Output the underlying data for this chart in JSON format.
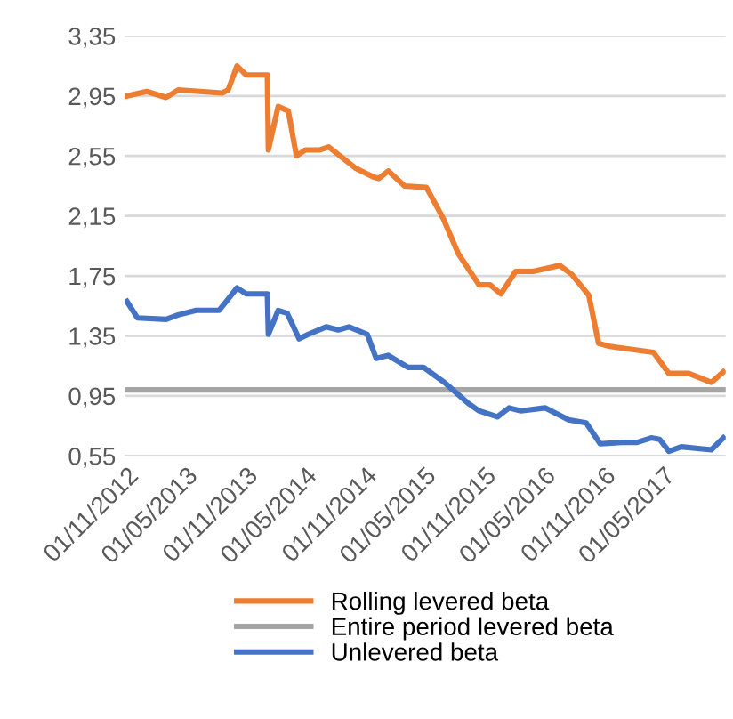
{
  "chart_data": {
    "type": "line",
    "series": [
      {
        "name": "Rolling levered beta",
        "color": "#ed7d31",
        "x": [
          "2012-11-01",
          "2013-01-01",
          "2013-03-01",
          "2013-04-07",
          "2013-08-20",
          "2013-09-07",
          "2013-10-04",
          "2013-11-01",
          "2014-01-05",
          "2014-01-08",
          "2014-02-07",
          "2014-03-10",
          "2014-04-04",
          "2014-05-01",
          "2014-06-15",
          "2014-07-12",
          "2014-10-01",
          "2014-11-25",
          "2014-12-12",
          "2015-01-10",
          "2015-03-01",
          "2015-05-07",
          "2015-06-28",
          "2015-08-12",
          "2015-10-15",
          "2015-11-18",
          "2015-12-21",
          "2016-02-04",
          "2016-03-28",
          "2016-06-18",
          "2016-07-25",
          "2016-09-15",
          "2016-10-15",
          "2016-11-18",
          "2017-04-01",
          "2017-05-18",
          "2017-07-18",
          "2017-09-25",
          "2017-11-01"
        ],
        "values": [
          2.95,
          2.98,
          2.94,
          2.99,
          2.97,
          2.99,
          3.15,
          3.09,
          3.09,
          2.59,
          2.88,
          2.85,
          2.55,
          2.59,
          2.59,
          2.61,
          2.47,
          2.41,
          2.4,
          2.45,
          2.35,
          2.34,
          2.13,
          1.9,
          1.69,
          1.69,
          1.63,
          1.78,
          1.78,
          1.82,
          1.76,
          1.62,
          1.3,
          1.28,
          1.24,
          1.1,
          1.1,
          1.04,
          1.11
        ]
      },
      {
        "name": "Entire period levered beta",
        "color": "#a5a5a5",
        "x": [
          "2012-11-01",
          "2017-11-01"
        ],
        "values": [
          0.99,
          0.99
        ]
      },
      {
        "name": "Unlevered beta",
        "color": "#4472c4",
        "x": [
          "2012-11-01",
          "2012-12-03",
          "2013-03-01",
          "2013-04-07",
          "2013-06-01",
          "2013-08-10",
          "2013-10-04",
          "2013-11-01",
          "2014-01-05",
          "2014-01-08",
          "2014-02-07",
          "2014-03-07",
          "2014-04-12",
          "2014-05-10",
          "2014-07-04",
          "2014-08-10",
          "2014-09-12",
          "2014-11-07",
          "2014-12-04",
          "2015-01-10",
          "2015-03-12",
          "2015-04-28",
          "2015-07-01",
          "2015-09-12",
          "2015-10-15",
          "2015-12-10",
          "2016-01-15",
          "2016-02-20",
          "2016-05-04",
          "2016-07-15",
          "2016-09-07",
          "2016-10-20",
          "2016-12-25",
          "2017-02-10",
          "2017-03-25",
          "2017-04-20",
          "2017-05-18",
          "2017-06-25",
          "2017-09-25",
          "2017-11-01"
        ],
        "values": [
          1.58,
          1.47,
          1.46,
          1.49,
          1.52,
          1.52,
          1.67,
          1.63,
          1.63,
          1.36,
          1.52,
          1.5,
          1.33,
          1.36,
          1.41,
          1.39,
          1.41,
          1.36,
          1.2,
          1.22,
          1.14,
          1.14,
          1.04,
          0.9,
          0.85,
          0.81,
          0.87,
          0.85,
          0.87,
          0.79,
          0.77,
          0.63,
          0.64,
          0.64,
          0.67,
          0.66,
          0.58,
          0.61,
          0.59,
          0.67
        ]
      }
    ],
    "xlim": [
      "2012-10-25",
      "2017-11-08"
    ],
    "xticks": [
      {
        "value": "2012-11-01",
        "label": "01/11/2012"
      },
      {
        "value": "2013-05-01",
        "label": "01/05/2013"
      },
      {
        "value": "2013-11-01",
        "label": "01/11/2013"
      },
      {
        "value": "2014-05-01",
        "label": "01/05/2014"
      },
      {
        "value": "2014-11-01",
        "label": "01/11/2014"
      },
      {
        "value": "2015-05-01",
        "label": "01/05/2015"
      },
      {
        "value": "2015-11-01",
        "label": "01/11/2015"
      },
      {
        "value": "2016-05-01",
        "label": "01/05/2016"
      },
      {
        "value": "2016-11-01",
        "label": "01/11/2016"
      },
      {
        "value": "2017-05-01",
        "label": "01/05/2017"
      }
    ],
    "ylim": [
      0.55,
      3.35
    ],
    "yticks": [
      {
        "value": 0.55,
        "label": "0,55"
      },
      {
        "value": 0.95,
        "label": "0,95"
      },
      {
        "value": 1.35,
        "label": "1,35"
      },
      {
        "value": 1.75,
        "label": "1,75"
      },
      {
        "value": 2.15,
        "label": "2,15"
      },
      {
        "value": 2.55,
        "label": "2,55"
      },
      {
        "value": 2.95,
        "label": "2,95"
      },
      {
        "value": 3.35,
        "label": "3,35"
      }
    ],
    "grid": "y",
    "legend": "bottom",
    "line_style": "solid",
    "marker": "none"
  }
}
